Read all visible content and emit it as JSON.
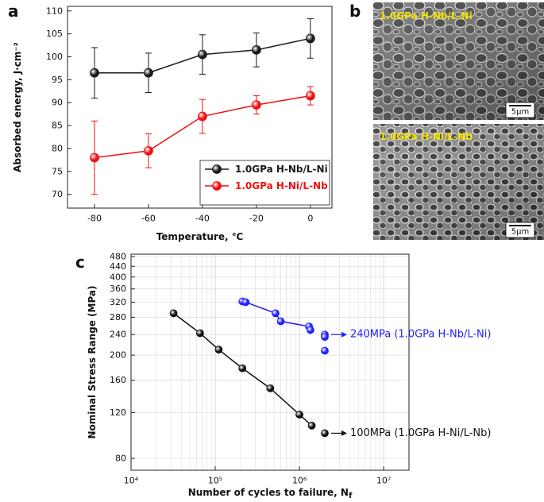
{
  "chart_data": [
    {
      "type": "line",
      "panel_label": "a",
      "x_label": "Temperature, ℃",
      "y_label": "Absorbed energy, J·cm⁻²",
      "x": [
        -80,
        -60,
        -40,
        -20,
        0
      ],
      "xlim": [
        -90,
        8
      ],
      "xticks": [
        -80,
        -60,
        -40,
        -20,
        0
      ],
      "ylim": [
        67,
        111
      ],
      "yticks": [
        70,
        75,
        80,
        85,
        90,
        95,
        100,
        105,
        110
      ],
      "legend": "lower right",
      "series": [
        {
          "name": "1.0GPa H-Nb/L-Ni",
          "color": "#1a1a1a",
          "values": [
            96.5,
            96.5,
            100.5,
            101.5,
            104
          ],
          "errors": [
            5.5,
            4.3,
            4.3,
            3.7,
            4.3
          ]
        },
        {
          "name": "1.0GPa H-Ni/L-Nb",
          "color": "#ee1111",
          "values": [
            78,
            79.5,
            87,
            89.5,
            91.5
          ],
          "errors": [
            8,
            3.7,
            3.7,
            2,
            2
          ]
        }
      ]
    },
    {
      "type": "scatter",
      "panel_label": "c",
      "x_label": "Number of cycles to failure, N",
      "x_label_subscript": "f",
      "y_label": "Nominal Stress Range (MPa)",
      "log_x": true,
      "log_y": true,
      "grid": true,
      "xlim": [
        10000,
        20000000
      ],
      "xticks": [
        {
          "value": 10000,
          "label": "10⁴"
        },
        {
          "value": 100000,
          "label": "10⁵"
        },
        {
          "value": 1000000,
          "label": "10⁶"
        },
        {
          "value": 10000000,
          "label": "10⁷"
        }
      ],
      "ylim": [
        72,
        490
      ],
      "yticks": [
        80,
        120,
        160,
        200,
        240,
        280,
        320,
        360,
        400,
        440,
        480
      ],
      "series": [
        {
          "color": "#111111",
          "line": true,
          "x": [
            32000,
            66000,
            110000,
            210000,
            450000,
            1000000,
            1400000
          ],
          "values": [
            290,
            243,
            210,
            178,
            149,
            118,
            107
          ]
        },
        {
          "color": "#111111",
          "line": false,
          "x": [
            2000000
          ],
          "values": [
            100
          ],
          "annotation": "100MPa (1.0GPa H-Ni/L-Nb)"
        },
        {
          "color": "#1f1fff",
          "line": true,
          "x": [
            210000,
            230000,
            520000,
            600000,
            1300000,
            1350000
          ],
          "values": [
            322,
            320,
            290,
            270,
            258,
            250
          ]
        },
        {
          "color": "#1f1fff",
          "line": false,
          "x": [
            2000000,
            2000000,
            2000000
          ],
          "values": [
            240,
            235,
            208
          ],
          "annotation": "240MPa (1.0GPa H-Nb/L-Ni)"
        }
      ]
    }
  ],
  "panel_b": {
    "label": "b",
    "images": [
      {
        "caption": "1.0GPa H-Nb/L-Ni",
        "scale_bar": "5μm"
      },
      {
        "caption": "1.0GPa H-Ni/L-Nb",
        "scale_bar": "5μm"
      }
    ]
  }
}
